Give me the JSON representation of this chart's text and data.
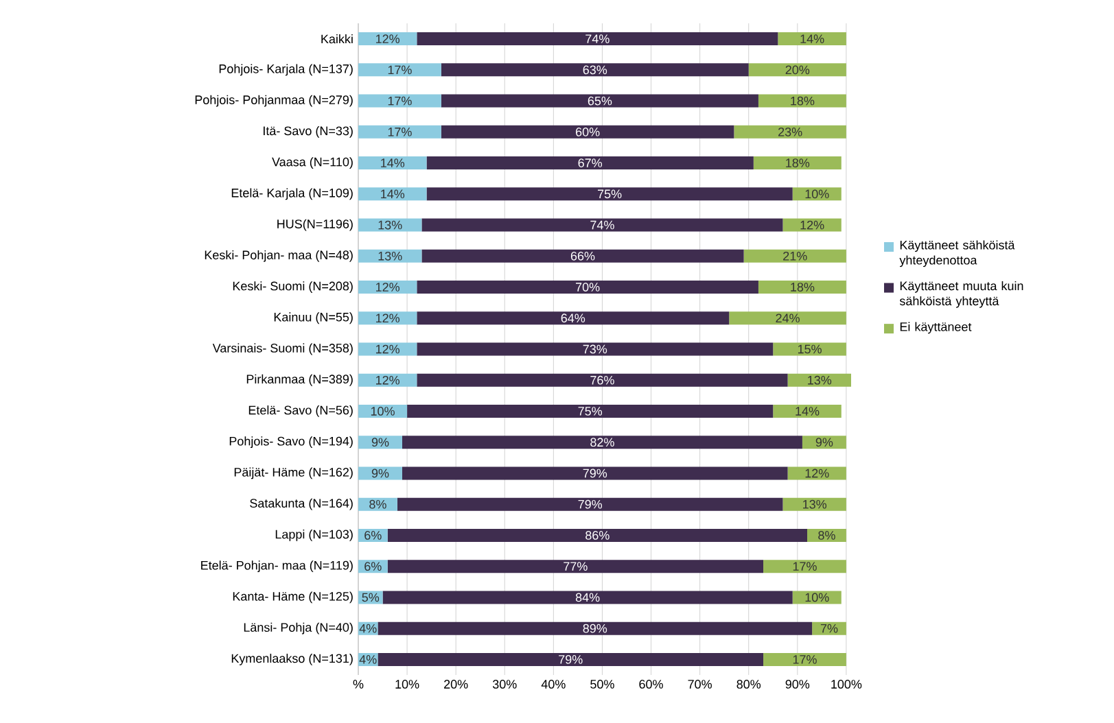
{
  "chart_data": {
    "type": "bar",
    "orientation": "horizontal",
    "stacked": true,
    "legend": "right",
    "grid": "x",
    "categories": [
      "Kaikki",
      "Pohjois- Karjala (N=137)",
      "Pohjois- Pohjanmaa (N=279)",
      "Itä- Savo (N=33)",
      "Vaasa (N=110)",
      "Etelä- Karjala (N=109)",
      "HUS(N=1196)",
      "Keski- Pohjan- maa (N=48)",
      "Keski- Suomi (N=208)",
      "Kainuu (N=55)",
      "Varsinais- Suomi (N=358)",
      "Pirkanmaa (N=389)",
      "Etelä- Savo (N=56)",
      "Pohjois- Savo (N=194)",
      "Päijät- Häme (N=162)",
      "Satakunta (N=164)",
      "Lappi (N=103)",
      "Etelä- Pohjan- maa (N=119)",
      "Kanta- Häme (N=125)",
      "Länsi- Pohja (N=40)",
      "Kymenlaakso (N=131)"
    ],
    "xlim": [
      0,
      101
    ],
    "xticks": [
      {
        "value": 0,
        "label": "%"
      },
      {
        "value": 10,
        "label": "10%"
      },
      {
        "value": 20,
        "label": "20%"
      },
      {
        "value": 30,
        "label": "30%"
      },
      {
        "value": 40,
        "label": "40%"
      },
      {
        "value": 50,
        "label": "50%"
      },
      {
        "value": 60,
        "label": "60%"
      },
      {
        "value": 70,
        "label": "70%"
      },
      {
        "value": 80,
        "label": "80%"
      },
      {
        "value": 90,
        "label": "90%"
      },
      {
        "value": 100,
        "label": "100%"
      }
    ],
    "series": [
      {
        "name": "Käyttäneet sähköistä yhteydenottoa",
        "color": "#8ccbe0",
        "values": [
          12,
          17,
          17,
          17,
          14,
          14,
          13,
          13,
          12,
          12,
          12,
          12,
          10,
          9,
          9,
          8,
          6,
          6,
          5,
          4,
          4
        ],
        "value_labels": [
          "12%",
          "17%",
          "17%",
          "17%",
          "14%",
          "14%",
          "13%",
          "13%",
          "12%",
          "12%",
          "12%",
          "12%",
          "10%",
          "9%",
          "9%",
          "8%",
          "6%",
          "6%",
          "5%",
          "4%",
          "4%"
        ]
      },
      {
        "name": "Käyttäneet muuta kuin sähköistä yhteyttä",
        "color": "#3f2d4f",
        "values": [
          74,
          63,
          65,
          60,
          67,
          75,
          74,
          66,
          70,
          64,
          73,
          76,
          75,
          82,
          79,
          79,
          86,
          77,
          84,
          89,
          79
        ],
        "value_labels": [
          "74%",
          "63%",
          "65%",
          "60%",
          "67%",
          "75%",
          "74%",
          "66%",
          "70%",
          "64%",
          "73%",
          "76%",
          "75%",
          "82%",
          "79%",
          "79%",
          "86%",
          "77%",
          "84%",
          "89%",
          "79%"
        ]
      },
      {
        "name": "Ei käyttäneet",
        "color": "#9bbb59",
        "values": [
          14,
          20,
          18,
          23,
          18,
          10,
          12,
          21,
          18,
          24,
          15,
          13,
          14,
          9,
          12,
          13,
          8,
          17,
          10,
          7,
          17
        ],
        "value_labels": [
          "14%",
          "20%",
          "18%",
          "23%",
          "18%",
          "10%",
          "12%",
          "21%",
          "18%",
          "24%",
          "15%",
          "13%",
          "14%",
          "9%",
          "12%",
          "13%",
          "8%",
          "17%",
          "10%",
          "7%",
          "17%"
        ]
      }
    ]
  }
}
